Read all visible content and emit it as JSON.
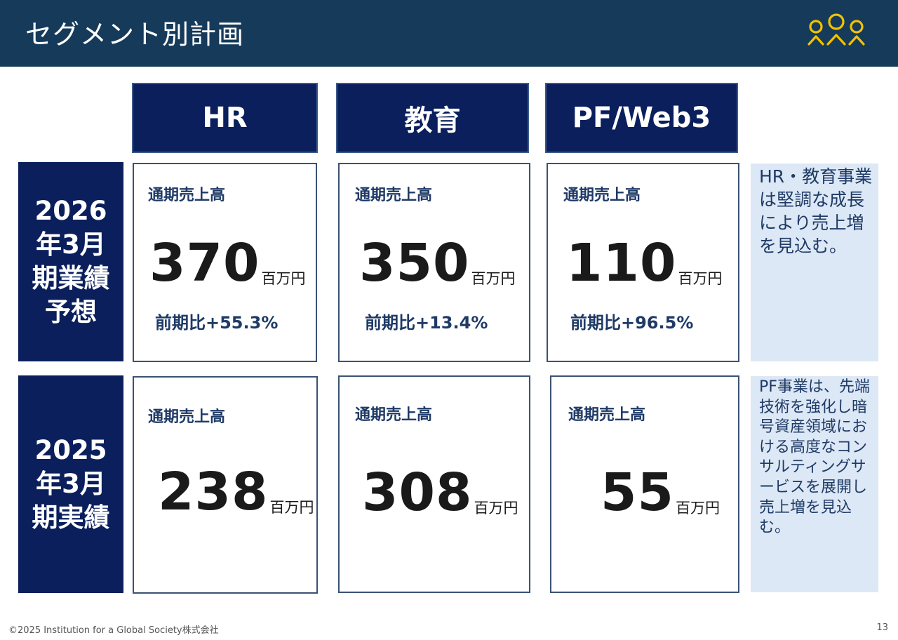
{
  "header": {
    "title": "セグメント別計画"
  },
  "columns": [
    "HR",
    "教育",
    "PF/Web3"
  ],
  "rows": {
    "forecast": {
      "line1": "2026",
      "line2": "年3月",
      "line3": "期業績",
      "line4": "予想"
    },
    "actual": {
      "line1": "2025",
      "line2": "年3月",
      "line3": "期実績"
    }
  },
  "forecast_cards": [
    {
      "label": "通期売上高",
      "value": "370",
      "unit": "百万円",
      "yoy": "前期比+55.3%"
    },
    {
      "label": "通期売上高",
      "value": "350",
      "unit": "百万円",
      "yoy": "前期比+13.4%"
    },
    {
      "label": "通期売上高",
      "value": "110",
      "unit": "百万円",
      "yoy": "前期比+96.5%"
    }
  ],
  "actual_cards": [
    {
      "label": "通期売上高",
      "value": "238",
      "unit": "百万円"
    },
    {
      "label": "通期売上高",
      "value": "308",
      "unit": "百万円"
    },
    {
      "label": "通期売上高",
      "value": "55",
      "unit": "百万円"
    }
  ],
  "notes": {
    "forecast": "HR・教育事業は堅調な成長により売上増を見込む。",
    "actual": "PF事業は、先端技術を強化し暗号資産領域における高度なコンサルティングサービスを展開し売上増を見込む。"
  },
  "footer": {
    "copyright": "©2025  Institution for a Global Society株式会社",
    "page": "13"
  },
  "colors": {
    "header_bg": "#163a5a",
    "navy": "#0a1f5c",
    "accent_text": "#1f3a66",
    "note_bg": "#dce8f5",
    "logo": "#f2c200"
  },
  "icons": {
    "logo": "three-people-logo-icon"
  }
}
